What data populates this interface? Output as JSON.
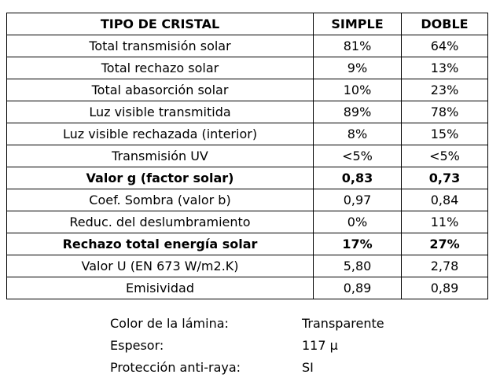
{
  "table": {
    "headers": [
      "TIPO DE CRISTAL",
      "SIMPLE",
      "DOBLE"
    ],
    "rows": [
      {
        "label": "Total transmisión solar",
        "simple": "81%",
        "doble": "64%",
        "bold": false
      },
      {
        "label": "Total rechazo solar",
        "simple": "9%",
        "doble": "13%",
        "bold": false
      },
      {
        "label": "Total abasorción solar",
        "simple": "10%",
        "doble": "23%",
        "bold": false
      },
      {
        "label": "Luz visible transmitida",
        "simple": "89%",
        "doble": "78%",
        "bold": false
      },
      {
        "label": "Luz visible rechazada (interior)",
        "simple": "8%",
        "doble": "15%",
        "bold": false
      },
      {
        "label": "Transmisión UV",
        "simple": "<5%",
        "doble": "<5%",
        "bold": false
      },
      {
        "label": "Valor g (factor solar)",
        "simple": "0,83",
        "doble": "0,73",
        "bold": true
      },
      {
        "label": "Coef. Sombra (valor b)",
        "simple": "0,97",
        "doble": "0,84",
        "bold": false
      },
      {
        "label": "Reduc. del deslumbramiento",
        "simple": "0%",
        "doble": "11%",
        "bold": false
      },
      {
        "label": "Rechazo total energía solar",
        "simple": "17%",
        "doble": "27%",
        "bold": true
      },
      {
        "label": "Valor U (EN 673 W/m2.K)",
        "simple": "5,80",
        "doble": "2,78",
        "bold": false
      },
      {
        "label": "Emisividad",
        "simple": "0,89",
        "doble": "0,89",
        "bold": false
      }
    ]
  },
  "properties": [
    {
      "label": "Color de la lámina:",
      "value": "Transparente"
    },
    {
      "label": "Espesor:",
      "value": "117 µ"
    },
    {
      "label": "Protección anti-raya:",
      "value": "SI"
    }
  ]
}
